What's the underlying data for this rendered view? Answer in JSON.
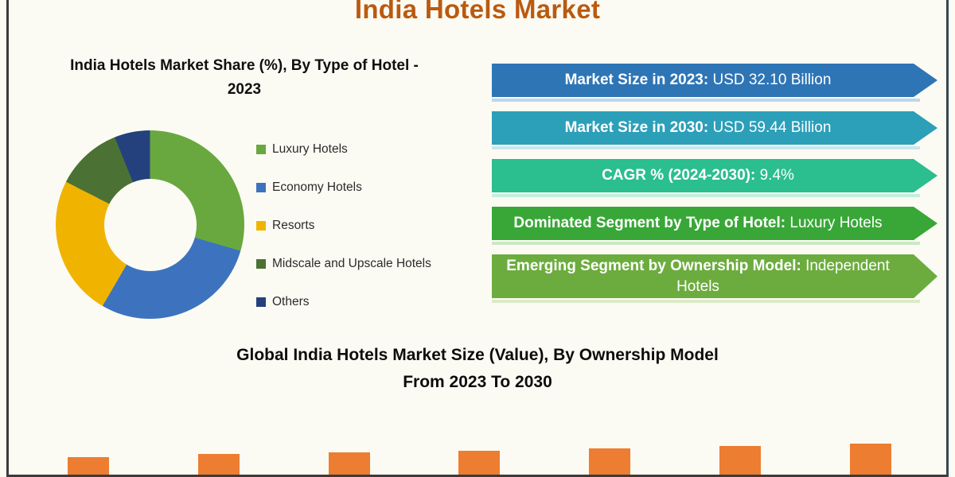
{
  "page": {
    "title": "India Hotels Market",
    "title_color": "#BA5A0F",
    "background": "#FCFBF3"
  },
  "pie_section": {
    "title": "India Hotels Market Share (%), By Type of Hotel - 2023",
    "legend": [
      {
        "label": "Luxury Hotels",
        "color": "#69A83F"
      },
      {
        "label": "Economy Hotels",
        "color": "#3D73BE"
      },
      {
        "label": "Resorts",
        "color": "#F0B400"
      },
      {
        "label": "Midscale and Upscale Hotels",
        "color": "#4C7134"
      },
      {
        "label": "Others",
        "color": "#24417E"
      }
    ]
  },
  "banners": [
    {
      "label": "Market Size in 2023:",
      "value": "USD 32.10 Billion",
      "color": "#2E75B6",
      "glow": "#BDD7EE"
    },
    {
      "label": "Market Size in 2030:",
      "value": "USD 59.44 Billion",
      "color": "#2C9FB9",
      "glow": "#C9E6EF"
    },
    {
      "label": "CAGR % (2024-2030):",
      "value": "9.4%",
      "color": "#2BBE8F",
      "glow": "#C3EFDF"
    },
    {
      "label": "Dominated Segment by Type of Hotel:",
      "value": "Luxury Hotels",
      "color": "#38A737",
      "glow": "#C9E9C6"
    },
    {
      "label": "Emerging Segment by Ownership Model:",
      "value": "Independent Hotels",
      "color": "#6CAC3E",
      "glow": "#DCEAC8"
    }
  ],
  "bottom_section": {
    "title_line1": "Global India Hotels Market Size (Value), By Ownership Model",
    "title_line2": "From 2023 To 2030"
  },
  "chart_data": [
    {
      "type": "pie",
      "donut": true,
      "title": "India Hotels Market Share (%), By Type of Hotel - 2023",
      "categories": [
        "Luxury Hotels",
        "Economy Hotels",
        "Resorts",
        "Midscale and Upscale Hotels",
        "Others"
      ],
      "values": [
        29.5,
        28.9,
        24.1,
        11.4,
        6.1
      ],
      "colors": [
        "#69A83F",
        "#3D73BE",
        "#F0B400",
        "#4C7134",
        "#24417E"
      ],
      "legend_position": "right",
      "start_angle_deg": 0
    },
    {
      "type": "bar",
      "title": "Global India Hotels Market Size (Value), By Ownership Model From 2023 To 2030",
      "categories": [
        "",
        "",
        "",
        "",
        "",
        "",
        ""
      ],
      "values": [
        25,
        29,
        31,
        33,
        36,
        39,
        42
      ],
      "value_unit": "visible bar height in px (chart cropped at image bottom; axes and labels not visible)",
      "bar_color": "#ED7D31",
      "xlabel": "",
      "ylabel": ""
    }
  ]
}
